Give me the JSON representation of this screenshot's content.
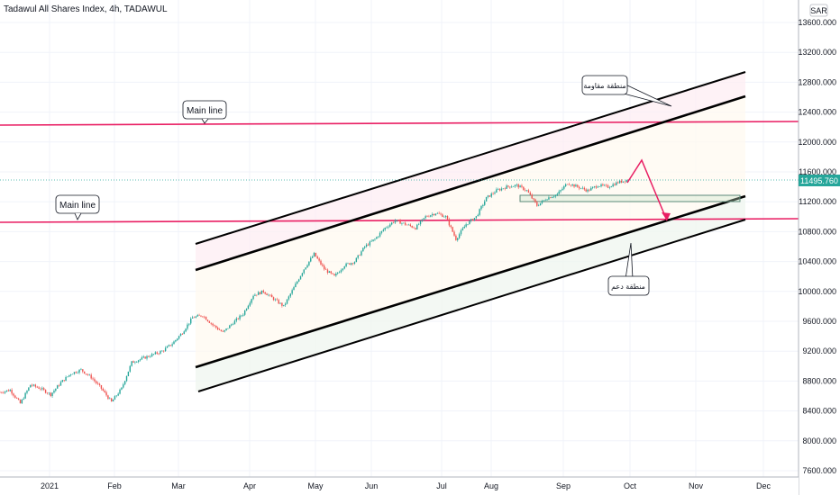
{
  "chart_data": {
    "type": "candlestick",
    "title": "Tadawul All Shares Index, 4h, TADAWUL",
    "currency_label": "SAR",
    "last_price_label": "11495.760",
    "ylim": [
      7600,
      13800
    ],
    "yticks": [
      "13600.000",
      "13200.000",
      "12800.000",
      "12400.000",
      "12000.000",
      "11600.000",
      "11200.000",
      "10800.000",
      "10400.000",
      "10000.000",
      "9600.000",
      "9200.000",
      "8800.000",
      "8400.000",
      "8000.000",
      "7600.000"
    ],
    "xticks": [
      "2021",
      "Feb",
      "Mar",
      "Apr",
      "May",
      "Jun",
      "Jul",
      "Aug",
      "Sep",
      "Oct",
      "Nov",
      "Dec"
    ],
    "price_path": [
      [
        0,
        8650
      ],
      [
        3,
        8680
      ],
      [
        6,
        8500
      ],
      [
        9,
        8750
      ],
      [
        12,
        8700
      ],
      [
        15,
        8620
      ],
      [
        18,
        8780
      ],
      [
        21,
        8900
      ],
      [
        24,
        8950
      ],
      [
        27,
        8850
      ],
      [
        30,
        8700
      ],
      [
        33,
        8520
      ],
      [
        36,
        8700
      ],
      [
        39,
        9050
      ],
      [
        42,
        9100
      ],
      [
        45,
        9150
      ],
      [
        48,
        9200
      ],
      [
        51,
        9300
      ],
      [
        54,
        9450
      ],
      [
        57,
        9650
      ],
      [
        60,
        9680
      ],
      [
        63,
        9550
      ],
      [
        66,
        9450
      ],
      [
        69,
        9580
      ],
      [
        72,
        9700
      ],
      [
        75,
        9950
      ],
      [
        78,
        10000
      ],
      [
        81,
        9900
      ],
      [
        84,
        9800
      ],
      [
        87,
        10050
      ],
      [
        90,
        10300
      ],
      [
        93,
        10500
      ],
      [
        96,
        10300
      ],
      [
        99,
        10200
      ],
      [
        102,
        10350
      ],
      [
        105,
        10400
      ],
      [
        108,
        10600
      ],
      [
        111,
        10700
      ],
      [
        114,
        10850
      ],
      [
        117,
        10950
      ],
      [
        120,
        10900
      ],
      [
        123,
        10850
      ],
      [
        126,
        11000
      ],
      [
        129,
        11050
      ],
      [
        132,
        11000
      ],
      [
        135,
        10700
      ],
      [
        138,
        10900
      ],
      [
        141,
        11000
      ],
      [
        144,
        11250
      ],
      [
        147,
        11350
      ],
      [
        150,
        11400
      ],
      [
        153,
        11420
      ],
      [
        156,
        11350
      ],
      [
        159,
        11150
      ],
      [
        162,
        11250
      ],
      [
        165,
        11300
      ],
      [
        168,
        11450
      ],
      [
        171,
        11400
      ],
      [
        174,
        11350
      ],
      [
        177,
        11420
      ],
      [
        180,
        11400
      ],
      [
        183,
        11460
      ],
      [
        186,
        11495.76
      ]
    ],
    "x_index_domain": [
      0,
      186
    ],
    "annotations": {
      "main_line_label": "Main line",
      "resistance_label": "منطقة مقاومة",
      "support_label": "منطقة دعم"
    }
  },
  "colors": {
    "up": "#26a69a",
    "down": "#ef5350",
    "main_line": "#e91e63",
    "channel": "#000000",
    "price_tag": "#26a69a"
  }
}
